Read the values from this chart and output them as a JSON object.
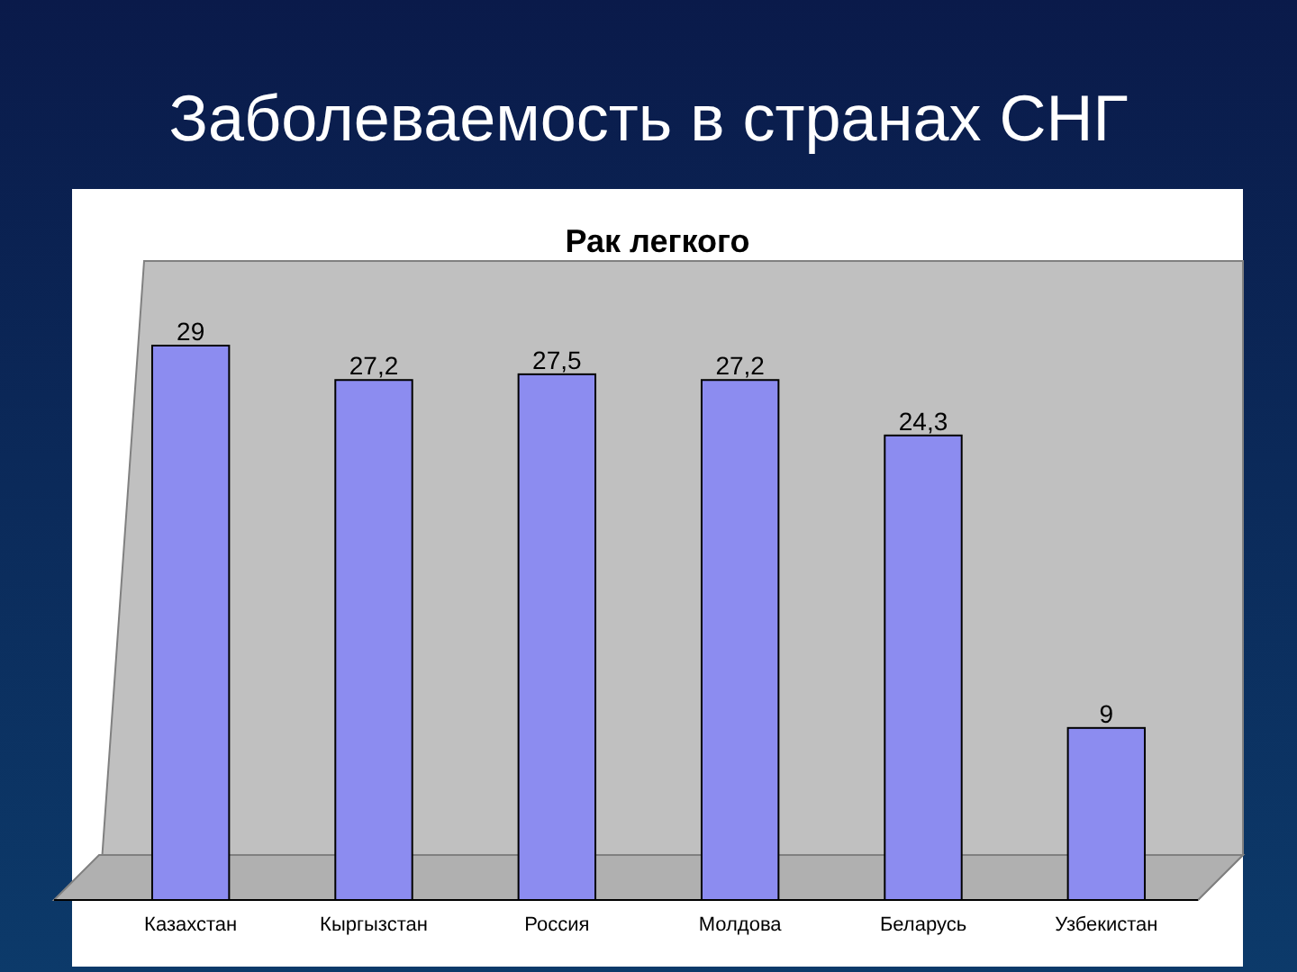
{
  "chart_data": {
    "type": "bar",
    "title": "Заболеваемость в странах СНГ",
    "subtitle": "Рак легкого",
    "categories": [
      "Казахстан",
      "Кыргызстан",
      "Россия",
      "Молдова",
      "Беларусь",
      "Узбекистан"
    ],
    "values": [
      29,
      27.2,
      27.5,
      27.2,
      24.3,
      9
    ],
    "value_labels": [
      "29",
      "27,2",
      "27,5",
      "27,2",
      "24,3",
      "9"
    ],
    "color": "#8c8cf0"
  }
}
